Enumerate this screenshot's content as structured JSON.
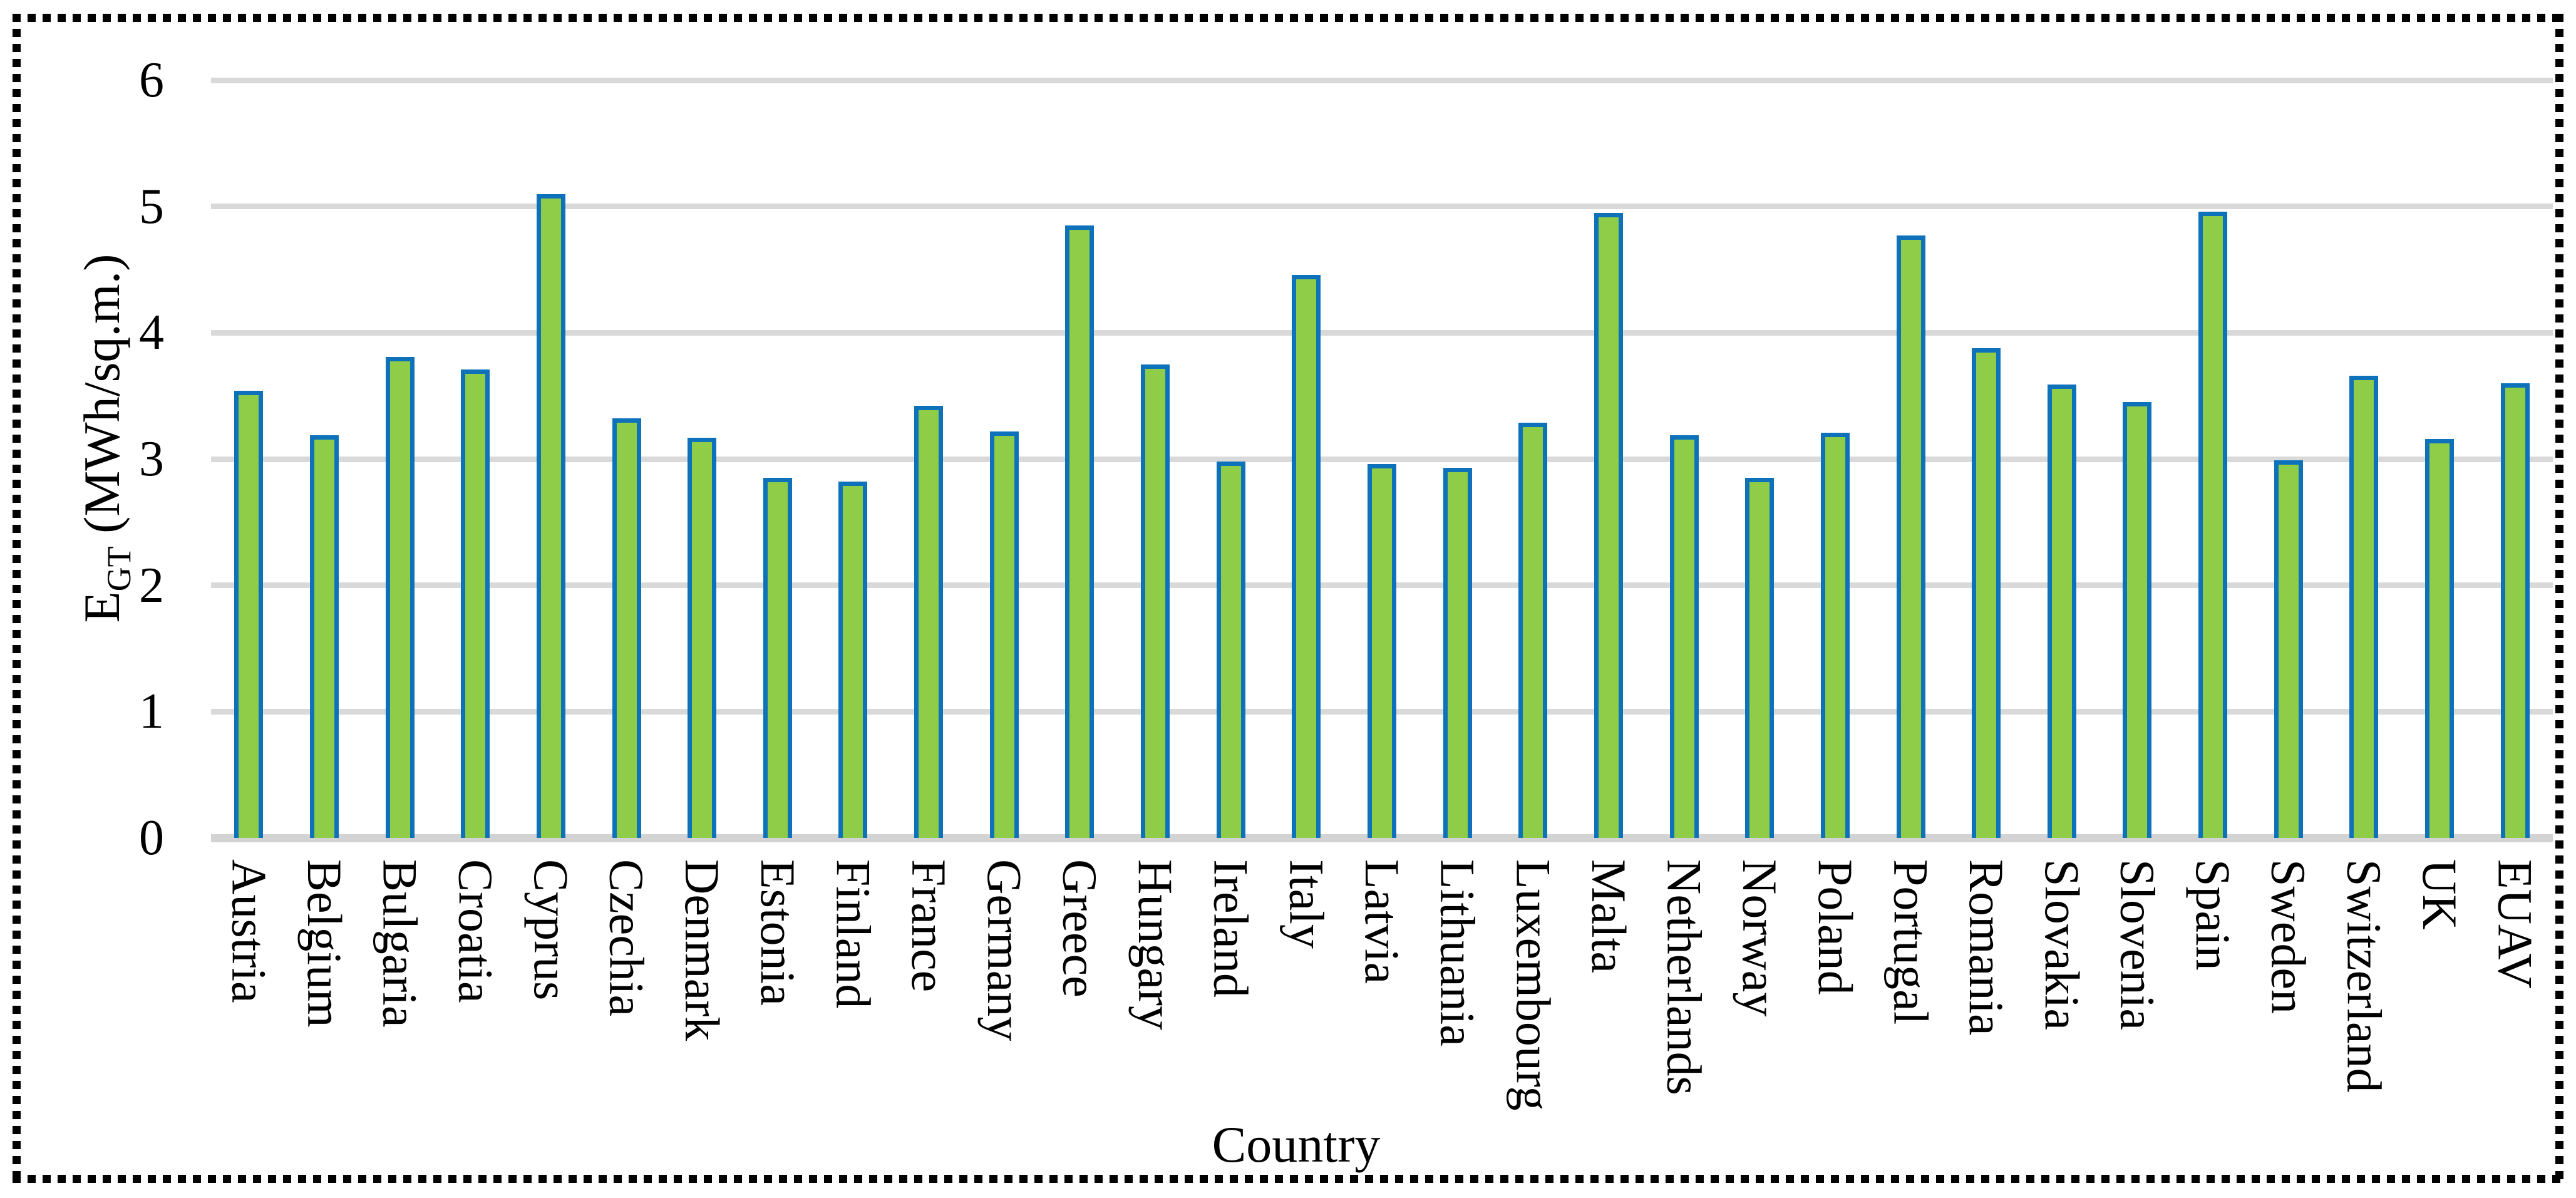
{
  "figure": {
    "background": "#FFFFFF",
    "border_color": "#000000",
    "border_style": "dotted"
  },
  "chart_data": {
    "type": "bar",
    "title": "",
    "xlabel": "Country",
    "ylabel": "E_GT (MWh/sq.m.)",
    "ylabel_parts": {
      "symbol": "E",
      "subscript": "GT",
      "units": " (MWh/sq.m.)"
    },
    "ylim": [
      0,
      6
    ],
    "yticks": [
      0,
      1,
      2,
      3,
      4,
      5,
      6
    ],
    "grid": true,
    "legend": "none",
    "categories": [
      "Austria",
      "Belgium",
      "Bulgaria",
      "Croatia",
      "Cyprus",
      "Czechia",
      "Denmark",
      "Estonia",
      "Finland",
      "France",
      "Germany",
      "Greece",
      "Hungary",
      "Ireland",
      "Italy",
      "Latvia",
      "Lithuania",
      "Luxembourg",
      "Malta",
      "Netherlands",
      "Norway",
      "Poland",
      "Portugal",
      "Romania",
      "Slovakia",
      "Slovenia",
      "Spain",
      "Sweden",
      "Switzerland",
      "UK",
      "EUAV"
    ],
    "values": [
      3.54,
      3.19,
      3.81,
      3.71,
      5.1,
      3.32,
      3.17,
      2.85,
      2.82,
      3.42,
      3.22,
      4.85,
      3.75,
      2.98,
      4.46,
      2.96,
      2.93,
      3.29,
      4.95,
      3.19,
      2.85,
      3.21,
      4.77,
      3.88,
      3.59,
      3.45,
      4.96,
      2.99,
      3.66,
      3.16,
      3.6
    ],
    "colors": {
      "bar_fill": "#8FCC47",
      "bar_border": "#0D72BA",
      "gridline": "#D9D9D9",
      "axis_line": "#D3D3D3",
      "text": "#000000"
    }
  }
}
